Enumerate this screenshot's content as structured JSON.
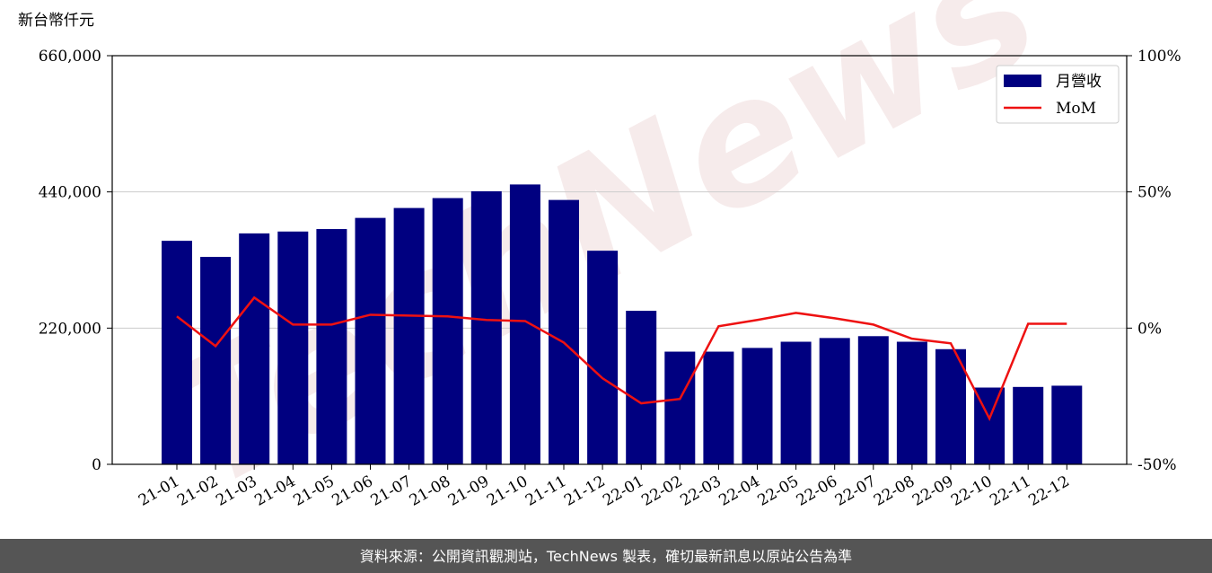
{
  "chart_data": {
    "type": "bar_line",
    "y_unit": "新台幣仟元",
    "categories": [
      "21-01",
      "21-02",
      "21-03",
      "21-04",
      "21-05",
      "21-06",
      "21-07",
      "21-08",
      "21-09",
      "21-10",
      "21-11",
      "21-12",
      "22-01",
      "22-02",
      "22-03",
      "22-04",
      "22-05",
      "22-06",
      "22-07",
      "22-08",
      "22-09",
      "22-10",
      "22-11",
      "22-12"
    ],
    "series": [
      {
        "name": "月營收",
        "type": "bar",
        "color": "#000080",
        "values": [
          361000,
          335000,
          373000,
          376000,
          380000,
          398000,
          414000,
          430000,
          441000,
          452000,
          427000,
          345000,
          248000,
          182000,
          182000,
          188000,
          198000,
          204000,
          207000,
          198000,
          186000,
          124000,
          125000,
          127000
        ]
      },
      {
        "name": "MoM",
        "type": "line",
        "axis": "y2",
        "color": "#ee1111",
        "values": [
          4.3,
          -6.6,
          11.2,
          1.3,
          1.3,
          4.9,
          4.6,
          4.3,
          3.0,
          2.6,
          -5.3,
          -18.4,
          -27.6,
          -26.0,
          0.7,
          3.0,
          5.6,
          3.6,
          1.3,
          -3.9,
          -5.6,
          -33.2,
          1.6,
          1.6
        ]
      }
    ],
    "ylim": [
      0,
      660000
    ],
    "yticks": [
      0,
      {
        "value": 220000,
        "label": "220,000"
      },
      {
        "value": 440000,
        "label": "440,000"
      },
      {
        "value": 660000,
        "label": "660,000"
      }
    ],
    "y2lim": [
      -50,
      100
    ],
    "y2ticks": [
      {
        "value": -50,
        "label": "-50%"
      },
      {
        "value": 0,
        "label": "0%"
      },
      {
        "value": 50,
        "label": "50%"
      },
      {
        "value": 100,
        "label": "100%"
      }
    ],
    "grid": true,
    "legend": "upper right",
    "watermark": "TechNews",
    "footer": "資料來源：公開資訊觀測站，TechNews 製表，確切最新訊息以原站公告為準"
  }
}
